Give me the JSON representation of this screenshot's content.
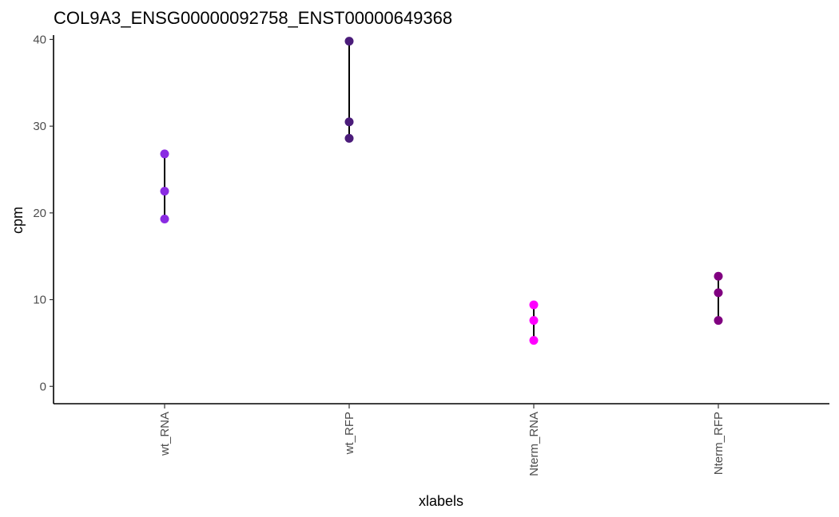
{
  "chart_data": {
    "type": "scatter",
    "title": "COL9A3_ENSG00000092758_ENST00000649368",
    "xlabel": "xlabels",
    "ylabel": "cpm",
    "categories": [
      "wt_RNA",
      "wt_RFP",
      "Nterm_RNA",
      "Nterm_RFP"
    ],
    "ylim": [
      -2,
      40.5
    ],
    "yticks": [
      0,
      10,
      20,
      30,
      40
    ],
    "grid": false,
    "series": [
      {
        "category": "wt_RNA",
        "values": [
          19.3,
          22.5,
          26.8
        ],
        "color": "#8a2be2"
      },
      {
        "category": "wt_RFP",
        "values": [
          28.6,
          30.5,
          39.8
        ],
        "color": "#4b1c7a"
      },
      {
        "category": "Nterm_RNA",
        "values": [
          5.3,
          7.6,
          9.4
        ],
        "color": "#ff00ff"
      },
      {
        "category": "Nterm_RFP",
        "values": [
          7.6,
          10.8,
          12.7
        ],
        "color": "#800080"
      }
    ]
  }
}
